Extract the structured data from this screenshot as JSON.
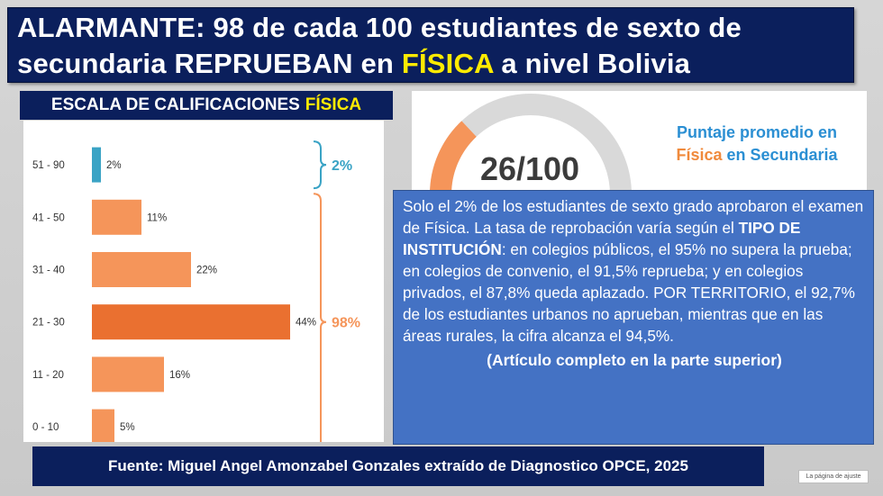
{
  "title": {
    "line1": "ALARMANTE: 98 de cada 100 estudiantes de sexto de",
    "line2_pre": "secundaria REPRUEBAN en ",
    "line2_highlight": "FÍSICA",
    "line2_post": " a nivel Bolivia"
  },
  "scale_heading": {
    "text": "ESCALA DE CALIFICACIONES",
    "highlight": "FÍSICA"
  },
  "chart_data": {
    "type": "bar",
    "orientation": "horizontal",
    "categories": [
      "51 - 90",
      "41 - 50",
      "31 - 40",
      "21 - 30",
      "11 - 20",
      "0 - 10"
    ],
    "values": [
      2,
      11,
      22,
      44,
      16,
      5
    ],
    "value_labels": [
      "2%",
      "11%",
      "22%",
      "44%",
      "16%",
      "5%"
    ],
    "bar_colors": [
      "#3aa3c5",
      "#f5955a",
      "#f5955a",
      "#ea7030",
      "#f5955a",
      "#f5955a"
    ],
    "xlim": [
      0,
      50
    ],
    "grid": false,
    "annotations": [
      {
        "label": "2%",
        "covers": [
          "51 - 90"
        ],
        "color": "#3aa3c5"
      },
      {
        "label": "98%",
        "covers": [
          "41 - 50",
          "31 - 40",
          "21 - 30",
          "11 - 20",
          "0 - 10"
        ],
        "color": "#f5955a"
      }
    ]
  },
  "gauge": {
    "score_text": "26/100",
    "score": 26,
    "max": 100,
    "fill_color": "#f5955a",
    "track_color": "#d9d9d9",
    "title_line1": "Puntaje promedio en",
    "title_line2_a": "Física",
    "title_line2_b": " en Secundaria"
  },
  "summary": {
    "part1": "Solo el 2% de los estudiantes de sexto grado aprobaron el examen de Física. La tasa de reprobación varía según el ",
    "bold": "TIPO DE INSTITUCIÓN",
    "part2": ": en colegios públicos, el 95% no supera la prueba; en colegios de convenio, el 91,5% reprueba; y en colegios privados, el 87,8% queda aplazado. POR TERRITORIO, el 92,7% de los estudiantes urbanos no aprueban, mientras que en las áreas rurales, la cifra alcanza el 94,5%.",
    "more": "(Artículo completo en la parte superior)"
  },
  "source": "Fuente: Miguel Angel Amonzabel Gonzales extraído de Diagnostico  OPCE, 2025",
  "footer_note": "La página de ajuste"
}
